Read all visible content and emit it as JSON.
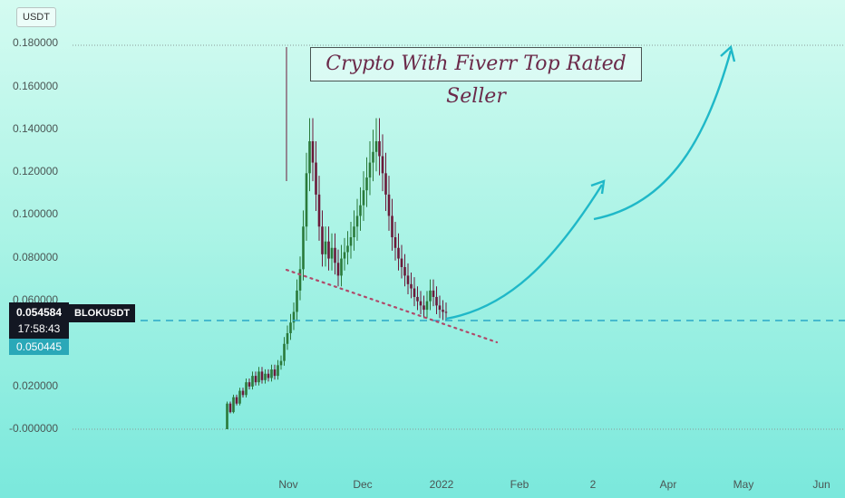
{
  "unit_label": "USDT",
  "title": "Crypto With Fiverr Top Rated Seller",
  "symbol": "BLOKUSDT",
  "current_price": "0.054584",
  "countdown": "17:58:43",
  "low_marker": "0.050445",
  "colors": {
    "up_candle": "#2a7a3a",
    "down_candle": "#6b1a3a",
    "arrow": "#1fb8c8",
    "dashed_line": "#2aa8c8",
    "trendline": "#b04a6a",
    "title_text": "#6b2a4a"
  },
  "y_ticks": [
    "0.180000",
    "0.160000",
    "0.140000",
    "0.120000",
    "0.100000",
    "0.080000",
    "0.060000",
    "0.020000",
    "-0.000000"
  ],
  "x_ticks": [
    "Nov",
    "Dec",
    "2022",
    "Feb",
    "2",
    "Apr",
    "May",
    "Jun"
  ],
  "chart_data": {
    "type": "candlestick",
    "ylim": [
      -0.008,
      0.185
    ],
    "series": [
      {
        "values": [
          0.0,
          0.012,
          0.008,
          0.015,
          0.012,
          0.018,
          0.016,
          0.022,
          0.02,
          0.025,
          0.022,
          0.027,
          0.023,
          0.026,
          0.024,
          0.028,
          0.025,
          0.03,
          0.032,
          0.04,
          0.045,
          0.05,
          0.055,
          0.065,
          0.075,
          0.095,
          0.12,
          0.135,
          0.125,
          0.11,
          0.095,
          0.082,
          0.088,
          0.08,
          0.085,
          0.078,
          0.072,
          0.08,
          0.083,
          0.086,
          0.09,
          0.095,
          0.1,
          0.105,
          0.112,
          0.118,
          0.125,
          0.13,
          0.135,
          0.128,
          0.12,
          0.11,
          0.1,
          0.09,
          0.085,
          0.08,
          0.076,
          0.072,
          0.068,
          0.066,
          0.062,
          0.06,
          0.058,
          0.056,
          0.06,
          0.065,
          0.062,
          0.058,
          0.056,
          0.055,
          0.054584
        ]
      }
    ],
    "trendline": {
      "from": [
        0.073
      ],
      "to": [
        0.04
      ]
    },
    "horizontal_level": 0.050445
  }
}
